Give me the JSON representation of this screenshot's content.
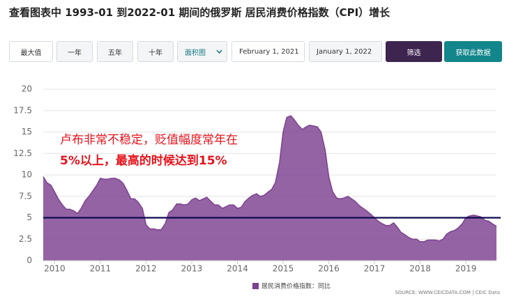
{
  "header": {
    "title": "查看图表中 1993-01 到2022-01 期间的俄罗斯 居民消费价格指数（CPI）增长"
  },
  "toolbar": {
    "buttons": [
      "最大值",
      "一年",
      "五年",
      "十年"
    ],
    "chart_select": "面积图",
    "date_from": "February 1, 2021",
    "date_to": "January 1, 2022",
    "filter": "筛选",
    "get_data": "获取此数据"
  },
  "chart_data": {
    "type": "area",
    "annotation": [
      "卢布非常不稳定，贬值幅度常年在",
      "5%以上，最高的时候达到15%"
    ],
    "x": [
      2009.75,
      2009.83,
      2009.92,
      2010.0,
      2010.08,
      2010.17,
      2010.25,
      2010.33,
      2010.42,
      2010.5,
      2010.58,
      2010.67,
      2010.75,
      2010.83,
      2010.92,
      2011.0,
      2011.08,
      2011.17,
      2011.25,
      2011.33,
      2011.42,
      2011.5,
      2011.58,
      2011.67,
      2011.75,
      2011.83,
      2011.92,
      2012.0,
      2012.08,
      2012.17,
      2012.25,
      2012.33,
      2012.42,
      2012.5,
      2012.58,
      2012.67,
      2012.75,
      2012.83,
      2012.92,
      2013.0,
      2013.08,
      2013.17,
      2013.25,
      2013.33,
      2013.42,
      2013.5,
      2013.58,
      2013.67,
      2013.75,
      2013.83,
      2013.92,
      2014.0,
      2014.08,
      2014.17,
      2014.25,
      2014.33,
      2014.42,
      2014.5,
      2014.58,
      2014.67,
      2014.75,
      2014.83,
      2014.92,
      2015.0,
      2015.08,
      2015.17,
      2015.25,
      2015.33,
      2015.42,
      2015.5,
      2015.58,
      2015.67,
      2015.75,
      2015.83,
      2015.92,
      2016.0,
      2016.08,
      2016.17,
      2016.25,
      2016.33,
      2016.42,
      2016.5,
      2016.58,
      2016.67,
      2016.75,
      2016.83,
      2016.92,
      2017.0,
      2017.08,
      2017.17,
      2017.25,
      2017.33,
      2017.42,
      2017.5,
      2017.58,
      2017.67,
      2017.75,
      2017.83,
      2017.92,
      2018.0,
      2018.08,
      2018.17,
      2018.25,
      2018.33,
      2018.42,
      2018.5,
      2018.58,
      2018.67,
      2018.75,
      2018.83,
      2018.92,
      2019.0,
      2019.08,
      2019.17,
      2019.25,
      2019.33,
      2019.42,
      2019.5,
      2019.58,
      2019.67
    ],
    "series": [
      {
        "name": "居民消费价格指数：同比",
        "color": "#7d4190",
        "values": [
          9.8,
          9.1,
          8.8,
          8.0,
          7.2,
          6.5,
          6.0,
          6.0,
          5.8,
          5.5,
          6.1,
          7.0,
          7.5,
          8.1,
          8.8,
          9.6,
          9.5,
          9.5,
          9.6,
          9.6,
          9.4,
          9.0,
          8.2,
          7.2,
          7.2,
          6.8,
          6.1,
          4.2,
          3.7,
          3.7,
          3.6,
          3.6,
          4.3,
          5.6,
          5.9,
          6.6,
          6.6,
          6.5,
          6.6,
          7.1,
          7.3,
          7.0,
          7.2,
          7.4,
          6.9,
          6.5,
          6.5,
          6.1,
          6.3,
          6.5,
          6.5,
          6.1,
          6.2,
          6.9,
          7.3,
          7.6,
          7.8,
          7.5,
          7.6,
          8.0,
          8.3,
          9.1,
          11.4,
          15.0,
          16.7,
          16.9,
          16.4,
          15.8,
          15.3,
          15.6,
          15.8,
          15.7,
          15.6,
          15.0,
          12.9,
          9.8,
          8.1,
          7.3,
          7.2,
          7.3,
          7.5,
          7.2,
          6.9,
          6.4,
          6.1,
          5.8,
          5.4,
          5.0,
          4.6,
          4.3,
          4.1,
          4.1,
          4.4,
          3.9,
          3.3,
          3.0,
          2.7,
          2.5,
          2.5,
          2.2,
          2.2,
          2.4,
          2.4,
          2.4,
          2.3,
          2.5,
          3.1,
          3.4,
          3.5,
          3.8,
          4.3,
          5.0,
          5.2,
          5.3,
          5.2,
          5.1,
          4.7,
          4.6,
          4.3,
          4.0
        ]
      }
    ],
    "reference_line": {
      "value": 5,
      "color": "#0c0a4d"
    },
    "xlim": [
      2009.75,
      2019.67
    ],
    "xticks": [
      2010,
      2011,
      2012,
      2013,
      2014,
      2015,
      2016,
      2017,
      2018,
      2019
    ],
    "ylim": [
      0,
      20
    ],
    "yticks": [
      0,
      2.5,
      5,
      7.5,
      10,
      12.5,
      15,
      17.5,
      20
    ],
    "grid": true,
    "source": "SOURCE: WWW.CEICDATA.COM | CEIC Data"
  }
}
